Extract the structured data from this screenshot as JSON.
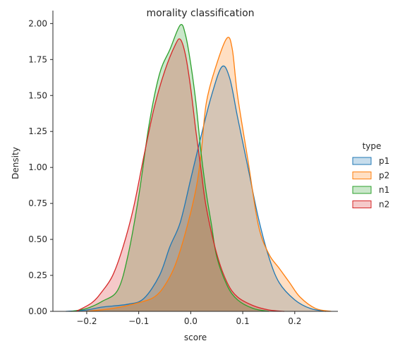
{
  "chart_data": {
    "type": "area",
    "title": "morality classification",
    "xlabel": "score",
    "ylabel": "Density",
    "xlim": [
      -0.265,
      0.283
    ],
    "ylim": [
      0,
      2.09
    ],
    "xticks": [
      -0.2,
      -0.1,
      0.0,
      0.1,
      0.2
    ],
    "xtick_labels": [
      "−0.2",
      "−0.1",
      "0.0",
      "0.1",
      "0.2"
    ],
    "yticks": [
      0.0,
      0.25,
      0.5,
      0.75,
      1.0,
      1.25,
      1.5,
      1.75,
      2.0
    ],
    "ytick_labels": [
      "0.00",
      "0.25",
      "0.50",
      "0.75",
      "1.00",
      "1.25",
      "1.50",
      "1.75",
      "2.00"
    ],
    "grid": false,
    "legend": {
      "title": "type",
      "placement": "right"
    },
    "series": [
      {
        "name": "p1",
        "color": "#1f77b4",
        "points": [
          [
            -0.24,
            0.0
          ],
          [
            -0.2,
            0.01
          ],
          [
            -0.17,
            0.03
          ],
          [
            -0.12,
            0.05
          ],
          [
            -0.09,
            0.09
          ],
          [
            -0.06,
            0.25
          ],
          [
            -0.04,
            0.45
          ],
          [
            -0.02,
            0.62
          ],
          [
            0.0,
            0.92
          ],
          [
            0.02,
            1.22
          ],
          [
            0.04,
            1.5
          ],
          [
            0.06,
            1.7
          ],
          [
            0.075,
            1.62
          ],
          [
            0.09,
            1.35
          ],
          [
            0.11,
            1.0
          ],
          [
            0.13,
            0.65
          ],
          [
            0.15,
            0.38
          ],
          [
            0.17,
            0.2
          ],
          [
            0.2,
            0.08
          ],
          [
            0.23,
            0.02
          ],
          [
            0.26,
            0.0
          ]
        ]
      },
      {
        "name": "p2",
        "color": "#ff7f0e",
        "points": [
          [
            -0.2,
            0.0
          ],
          [
            -0.15,
            0.02
          ],
          [
            -0.1,
            0.06
          ],
          [
            -0.07,
            0.1
          ],
          [
            -0.05,
            0.18
          ],
          [
            -0.03,
            0.32
          ],
          [
            -0.01,
            0.55
          ],
          [
            0.01,
            0.85
          ],
          [
            0.02,
            1.1
          ],
          [
            0.03,
            1.45
          ],
          [
            0.05,
            1.72
          ],
          [
            0.07,
            1.9
          ],
          [
            0.08,
            1.82
          ],
          [
            0.09,
            1.5
          ],
          [
            0.11,
            1.05
          ],
          [
            0.13,
            0.6
          ],
          [
            0.15,
            0.4
          ],
          [
            0.17,
            0.3
          ],
          [
            0.19,
            0.2
          ],
          [
            0.21,
            0.1
          ],
          [
            0.24,
            0.02
          ],
          [
            0.27,
            0.0
          ]
        ]
      },
      {
        "name": "n1",
        "color": "#2ca02c",
        "points": [
          [
            -0.23,
            0.0
          ],
          [
            -0.2,
            0.02
          ],
          [
            -0.17,
            0.07
          ],
          [
            -0.14,
            0.15
          ],
          [
            -0.12,
            0.4
          ],
          [
            -0.1,
            0.8
          ],
          [
            -0.08,
            1.3
          ],
          [
            -0.06,
            1.65
          ],
          [
            -0.04,
            1.82
          ],
          [
            -0.02,
            1.99
          ],
          [
            -0.01,
            1.92
          ],
          [
            0.0,
            1.72
          ],
          [
            0.01,
            1.45
          ],
          [
            0.02,
            1.1
          ],
          [
            0.03,
            0.82
          ],
          [
            0.04,
            0.6
          ],
          [
            0.05,
            0.38
          ],
          [
            0.07,
            0.18
          ],
          [
            0.09,
            0.08
          ],
          [
            0.12,
            0.02
          ],
          [
            0.15,
            0.0
          ]
        ]
      },
      {
        "name": "n2",
        "color": "#d62728",
        "points": [
          [
            -0.22,
            0.0
          ],
          [
            -0.19,
            0.06
          ],
          [
            -0.17,
            0.14
          ],
          [
            -0.15,
            0.25
          ],
          [
            -0.13,
            0.45
          ],
          [
            -0.11,
            0.72
          ],
          [
            -0.09,
            1.08
          ],
          [
            -0.07,
            1.42
          ],
          [
            -0.05,
            1.67
          ],
          [
            -0.03,
            1.85
          ],
          [
            -0.02,
            1.89
          ],
          [
            -0.01,
            1.78
          ],
          [
            0.0,
            1.55
          ],
          [
            0.01,
            1.25
          ],
          [
            0.02,
            0.98
          ],
          [
            0.03,
            0.72
          ],
          [
            0.05,
            0.4
          ],
          [
            0.07,
            0.2
          ],
          [
            0.09,
            0.1
          ],
          [
            0.12,
            0.04
          ],
          [
            0.15,
            0.01
          ],
          [
            0.18,
            0.0
          ]
        ]
      }
    ]
  }
}
